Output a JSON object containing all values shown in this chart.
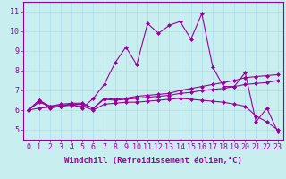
{
  "title": "",
  "xlabel": "Windchill (Refroidissement éolien,°C)",
  "ylabel": "",
  "background_color": "#c8eef0",
  "line_color": "#990099",
  "grid_color": "#aaddee",
  "x": [
    0,
    1,
    2,
    3,
    4,
    5,
    6,
    7,
    8,
    9,
    10,
    11,
    12,
    13,
    14,
    15,
    16,
    17,
    18,
    19,
    20,
    21,
    22,
    23
  ],
  "series": [
    [
      6.0,
      6.5,
      6.1,
      6.2,
      6.3,
      6.1,
      6.6,
      7.3,
      8.4,
      9.2,
      8.3,
      10.4,
      9.9,
      10.3,
      10.5,
      9.6,
      10.9,
      8.2,
      7.2,
      7.2,
      7.9,
      5.4,
      6.1,
      4.9
    ],
    [
      6.0,
      6.5,
      6.2,
      6.3,
      6.35,
      6.35,
      6.1,
      6.6,
      6.55,
      6.6,
      6.7,
      6.75,
      6.8,
      6.85,
      7.0,
      7.1,
      7.2,
      7.3,
      7.4,
      7.5,
      7.65,
      7.7,
      7.75,
      7.8
    ],
    [
      6.0,
      6.4,
      6.2,
      6.25,
      6.3,
      6.3,
      6.1,
      6.55,
      6.5,
      6.55,
      6.6,
      6.65,
      6.7,
      6.75,
      6.85,
      6.9,
      7.0,
      7.05,
      7.1,
      7.2,
      7.3,
      7.35,
      7.4,
      7.5
    ],
    [
      6.0,
      6.1,
      6.15,
      6.2,
      6.25,
      6.2,
      6.0,
      6.3,
      6.35,
      6.4,
      6.4,
      6.45,
      6.5,
      6.55,
      6.6,
      6.55,
      6.5,
      6.45,
      6.4,
      6.3,
      6.2,
      5.7,
      5.4,
      5.0
    ]
  ],
  "ylim": [
    4.5,
    11.5
  ],
  "xlim": [
    -0.5,
    23.5
  ],
  "yticks": [
    5,
    6,
    7,
    8,
    9,
    10,
    11
  ],
  "xticks": [
    0,
    1,
    2,
    3,
    4,
    5,
    6,
    7,
    8,
    9,
    10,
    11,
    12,
    13,
    14,
    15,
    16,
    17,
    18,
    19,
    20,
    21,
    22,
    23
  ],
  "marker": "D",
  "markersize": 2.0,
  "linewidth": 0.8,
  "xlabel_fontsize": 6.5,
  "tick_fontsize": 6.0
}
